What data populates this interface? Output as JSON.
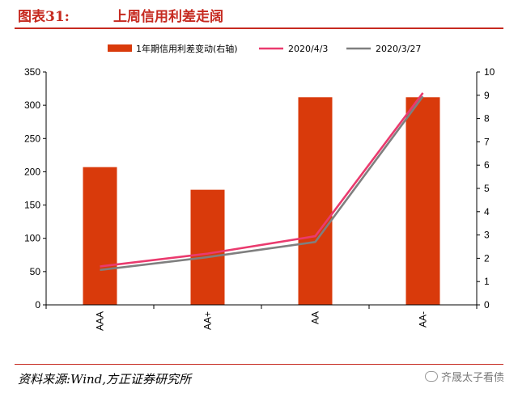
{
  "header": {
    "label": "图表31:",
    "title": "上周信用利差走阔"
  },
  "footer": {
    "source": "资料来源:Wind,方正证券研究所",
    "watermark": "齐晟太子看债"
  },
  "colors": {
    "bar": "#d93a0b",
    "line_a": "#ea3a6e",
    "line_b": "#7f7f7f",
    "accent": "#c62a20"
  },
  "chart_data": {
    "type": "bar",
    "categories": [
      "AAA",
      "AA+",
      "AA",
      "AA-"
    ],
    "left_axis": {
      "ylim": [
        0,
        350
      ],
      "ticks": [
        0,
        50,
        100,
        150,
        200,
        250,
        300,
        350
      ]
    },
    "right_axis": {
      "ylim": [
        0,
        10
      ],
      "ticks": [
        0,
        1,
        2,
        3,
        4,
        5,
        6,
        7,
        8,
        9,
        10
      ]
    },
    "series": [
      {
        "name": "1年期信用利差变动(右轴)",
        "kind": "bar",
        "axis": "left",
        "values": [
          207,
          173,
          312,
          312
        ]
      },
      {
        "name": "2020/4/3",
        "kind": "line",
        "axis": "right",
        "values": [
          1.65,
          2.2,
          2.95,
          9.1
        ]
      },
      {
        "name": "2020/3/27",
        "kind": "line",
        "axis": "right",
        "values": [
          1.5,
          2.05,
          2.7,
          8.95
        ]
      }
    ],
    "legend_position": "top-center",
    "grid": false
  }
}
